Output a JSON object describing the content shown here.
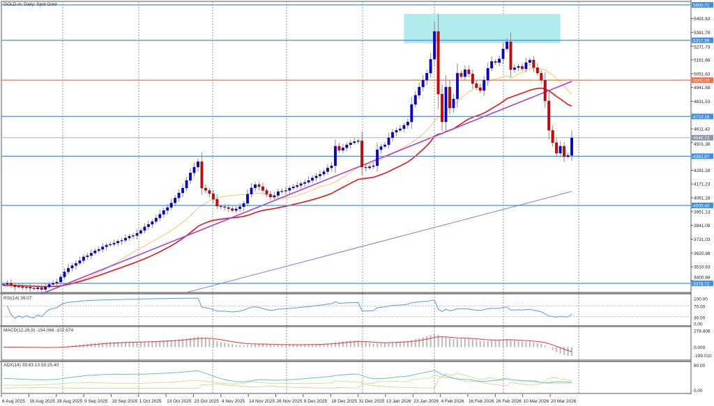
{
  "header": {
    "title": "GOLD.m, Daily:  Spot Gold"
  },
  "colors": {
    "bull": "#0000ee",
    "bear": "#dd0000",
    "wick": "#888888",
    "level": "#3d8fe8",
    "key_level": "#ff6a3d",
    "current": "#a9b2bf",
    "ma_fast": "#ffc36e",
    "ma_mid": "#ee1111",
    "ma_long": "#7777ff",
    "trend": "#a640d8",
    "zone": "#b0ecec",
    "rsi": "#4a9df0",
    "macd_signal": "#ee3333",
    "macd_hist": "#b8b8b8",
    "adx": "#5cc8b8",
    "di_plus": "#b9e07a",
    "di_minus": "#f0c080"
  },
  "chart_data": {
    "type": "candlestick",
    "symbol": "GOLD.m",
    "timeframe": "Daily",
    "closes": [
      3370,
      3380,
      3365,
      3350,
      3355,
      3345,
      3350,
      3340,
      3335,
      3345,
      3330,
      3350,
      3370,
      3380,
      3389,
      3430,
      3470,
      3500,
      3520,
      3539,
      3560,
      3590,
      3600,
      3620,
      3639,
      3650,
      3670,
      3684,
      3690,
      3700,
      3715,
      3722,
      3740,
      3755,
      3760,
      3778,
      3800,
      3830,
      3850,
      3872,
      3900,
      3930,
      3960,
      3984,
      4020,
      4060,
      4100,
      4139,
      4200,
      4260,
      4306,
      4350,
      4139,
      4120,
      4095,
      4050,
      3995,
      3990,
      3984,
      3975,
      3960,
      3973,
      3990,
      4017,
      4090,
      4140,
      4167,
      4150,
      4120,
      4090,
      4067,
      4080,
      4111,
      4115,
      4120,
      4139,
      4150,
      4160,
      4175,
      4184,
      4200,
      4220,
      4235,
      4250,
      4270,
      4300,
      4317,
      4473,
      4440,
      4460,
      4484,
      4500,
      4510,
      4517,
      4306,
      4300,
      4310,
      4317,
      4445,
      4470,
      4484,
      4540,
      4584,
      4600,
      4612,
      4640,
      4667,
      4806,
      4880,
      4945,
      5000,
      5056,
      5167,
      5389,
      4889,
      4667,
      4945,
      4778,
      4850,
      5056,
      5028,
      5084,
      5050,
      4973,
      4940,
      4917,
      5000,
      5095,
      5150,
      5140,
      5170,
      5250,
      5306,
      5084,
      5100,
      5111,
      5090,
      5140,
      5160,
      5100,
      5056,
      5000,
      4834,
      4600,
      4501,
      4417,
      4473,
      4389,
      4400,
      4540
    ],
    "y_range": [
      3330,
      5620
    ],
    "y_ticks": [
      "5491.83",
      "5381.78",
      "5271.73",
      "5161.68",
      "5051.63",
      "4941.58",
      "4831.53",
      "4611.43",
      "4501.38",
      "4281.28",
      "4171.23",
      "4061.18",
      "3951.13",
      "3841.08",
      "3731.03",
      "3620.98",
      "3510.93",
      "3400.88"
    ],
    "levels": [
      {
        "price": 5600.71,
        "label": "5600.71",
        "kind": "level"
      },
      {
        "price": 5317.99,
        "label": "5317.99",
        "kind": "level"
      },
      {
        "price": 5000.0,
        "label": "5000.00",
        "kind": "key_level"
      },
      {
        "price": 4710.16,
        "label": "4710.16",
        "kind": "level"
      },
      {
        "price": 4392.87,
        "label": "4392.87",
        "kind": "level"
      },
      {
        "price": 4000.4,
        "label": "4000.40",
        "kind": "level"
      },
      {
        "price": 3378.72,
        "label": "3378.72",
        "kind": "level"
      }
    ],
    "current_price": {
      "price": 4540.72,
      "label": "4540.72"
    },
    "resistance_zone": {
      "from_index": 105,
      "to_index": 146,
      "top": 5528,
      "bottom": 5295
    },
    "trendline": {
      "from_index": 10,
      "from_price": 3295,
      "to_index": 149,
      "to_price": 4990
    },
    "ma_long": {
      "from_index": 48,
      "from_price": 3306,
      "to_price": 4112
    },
    "x_labels": [
      "6 Aug 2025",
      "18 Aug 2025",
      "28 Aug 2025",
      "9 Sep 2025",
      "19 Sep 2025",
      "1 Oct 2025",
      "13 Oct 2025",
      "23 Oct 2025",
      "4 Nov 2025",
      "14 Nov 2025",
      "26 Nov 2025",
      "8 Dec 2025",
      "18 Dec 2025",
      "31 Dec 2025",
      "13 Jan 2026",
      "23 Jan 2026",
      "4 Feb 2026",
      "16 Feb 2026",
      "26 Feb 2026",
      "10 Mar 2026",
      "20 Mar 2026"
    ],
    "rsi": {
      "label": "RSI(14) 39.07",
      "ticks": [
        "100.00",
        "70.00",
        "30.00",
        "0.00"
      ],
      "levels": [
        70,
        30
      ]
    },
    "macd": {
      "label": "MACD(12,26,9) -154.066 -102.674",
      "ticks": [
        "278.406",
        "0.000",
        "-199.010"
      ],
      "range": [
        -199.01,
        278.406
      ]
    },
    "adx": {
      "label": "ADX(14) 39.83 13.59 25.40",
      "ticks": [
        "80.00",
        "0.00"
      ],
      "range": [
        0,
        80
      ]
    }
  }
}
